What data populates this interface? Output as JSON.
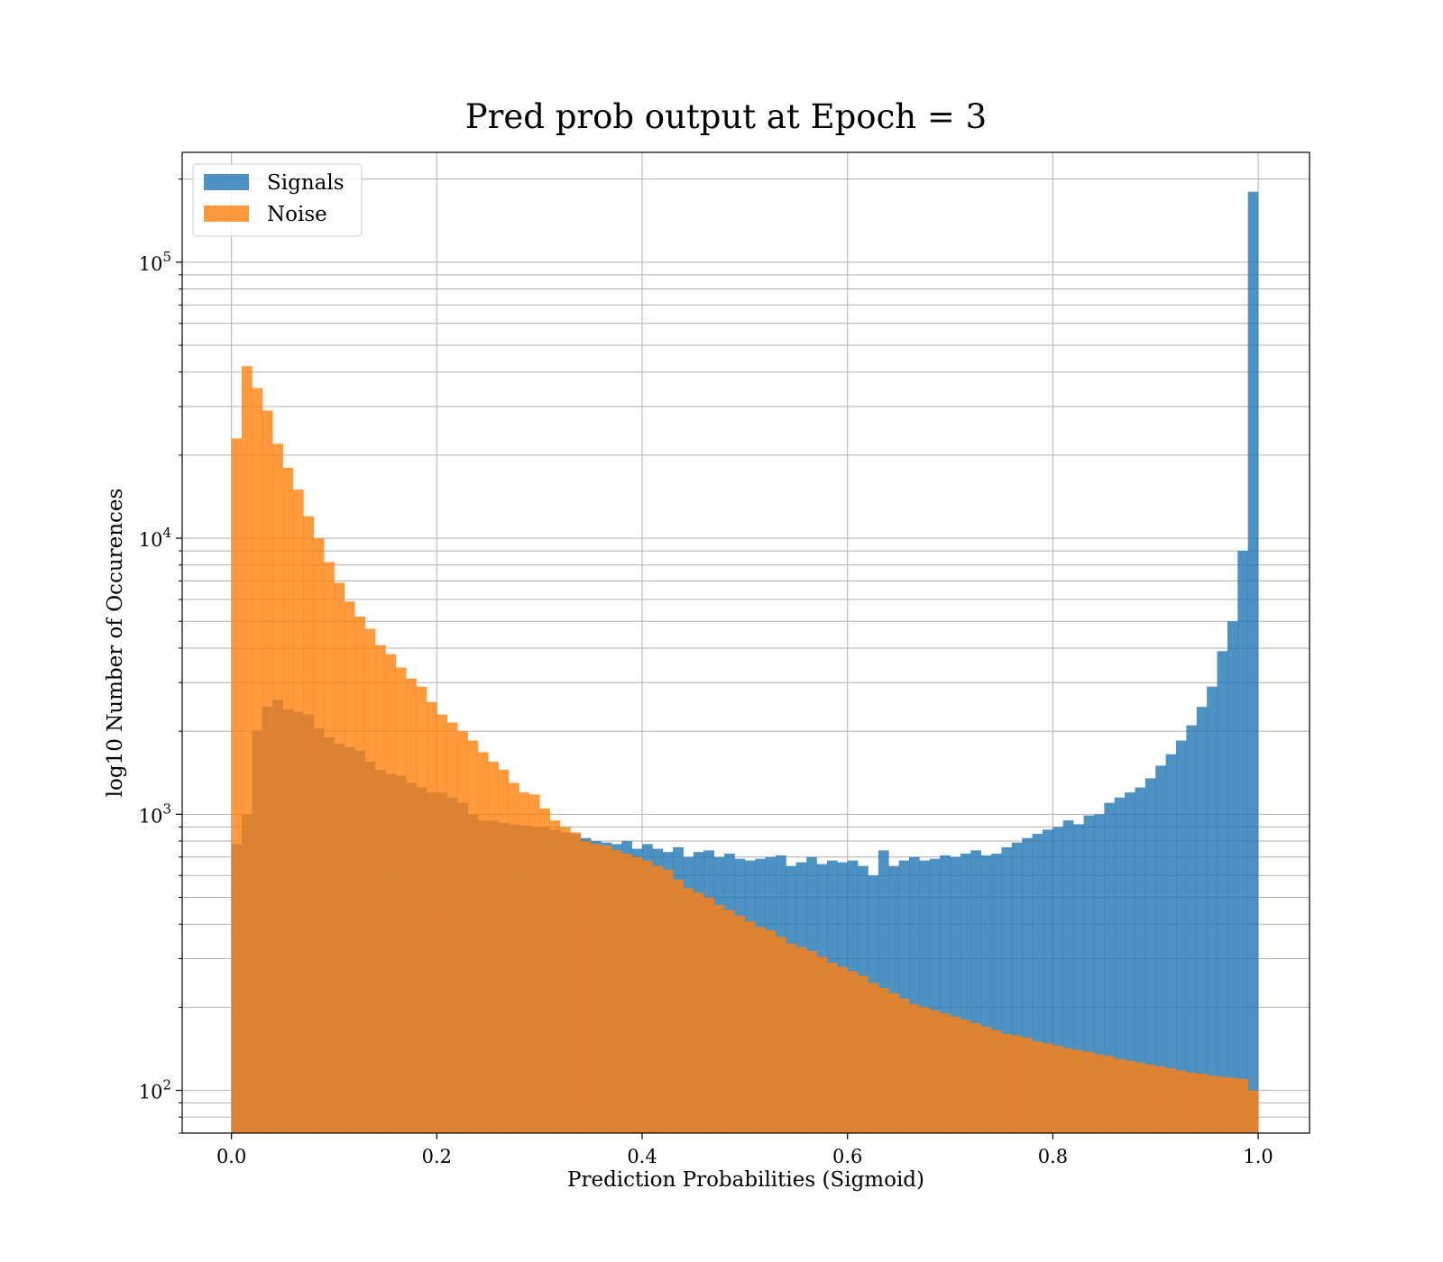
{
  "chart_data": {
    "type": "bar",
    "title": "Pred prob output at Epoch = 3",
    "xlabel": "Prediction Probabilities (Sigmoid)",
    "ylabel": "log10 Number of Occurences",
    "xlim": [
      -0.048,
      1.05
    ],
    "ylim": [
      70,
      250000
    ],
    "y_scale": "log",
    "grid": true,
    "legend_position": "top-left",
    "bins": 100,
    "bin_range": [
      0,
      1
    ],
    "x_ticks": [
      {
        "value": 0.0,
        "label": "0.0"
      },
      {
        "value": 0.2,
        "label": "0.2"
      },
      {
        "value": 0.4,
        "label": "0.4"
      },
      {
        "value": 0.6,
        "label": "0.6"
      },
      {
        "value": 0.8,
        "label": "0.8"
      },
      {
        "value": 1.0,
        "label": "1.0"
      }
    ],
    "y_ticks": [
      {
        "value": 100,
        "base": "10",
        "exp": "2"
      },
      {
        "value": 1000,
        "base": "10",
        "exp": "3"
      },
      {
        "value": 10000,
        "base": "10",
        "exp": "4"
      },
      {
        "value": 100000,
        "base": "10",
        "exp": "5"
      }
    ],
    "series": [
      {
        "name": "Signals",
        "color": "#1f77b4",
        "opacity": 0.8,
        "values": [
          780,
          1000,
          2000,
          2450,
          2600,
          2400,
          2350,
          2300,
          2050,
          1900,
          1800,
          1750,
          1700,
          1550,
          1450,
          1400,
          1380,
          1300,
          1250,
          1200,
          1200,
          1150,
          1100,
          1000,
          950,
          950,
          930,
          920,
          910,
          900,
          900,
          880,
          860,
          850,
          820,
          800,
          790,
          780,
          800,
          750,
          780,
          750,
          730,
          760,
          700,
          730,
          740,
          700,
          720,
          690,
          680,
          690,
          700,
          710,
          650,
          670,
          700,
          660,
          680,
          670,
          680,
          650,
          600,
          740,
          650,
          680,
          700,
          680,
          690,
          710,
          700,
          720,
          740,
          710,
          720,
          760,
          790,
          820,
          850,
          880,
          900,
          950,
          920,
          990,
          1000,
          1100,
          1150,
          1200,
          1250,
          1350,
          1500,
          1650,
          1850,
          2100,
          2450,
          2900,
          3900,
          5000,
          9000,
          180000
        ]
      },
      {
        "name": "Noise",
        "color": "#ff7f0e",
        "opacity": 0.8,
        "values": [
          23000,
          42000,
          35000,
          29000,
          22000,
          18000,
          15000,
          12000,
          10000,
          8200,
          6900,
          5900,
          5200,
          4700,
          4100,
          3800,
          3400,
          3100,
          2900,
          2550,
          2300,
          2150,
          2000,
          1850,
          1680,
          1550,
          1450,
          1300,
          1200,
          1180,
          1050,
          950,
          900,
          860,
          800,
          780,
          770,
          740,
          720,
          700,
          680,
          650,
          630,
          580,
          540,
          520,
          500,
          470,
          450,
          430,
          410,
          390,
          380,
          360,
          340,
          330,
          320,
          305,
          290,
          280,
          270,
          260,
          245,
          235,
          225,
          215,
          205,
          200,
          195,
          190,
          185,
          180,
          175,
          170,
          165,
          160,
          158,
          155,
          150,
          148,
          145,
          142,
          140,
          138,
          135,
          133,
          130,
          128,
          126,
          124,
          122,
          120,
          118,
          116,
          115,
          113,
          112,
          111,
          110,
          100
        ]
      }
    ]
  }
}
